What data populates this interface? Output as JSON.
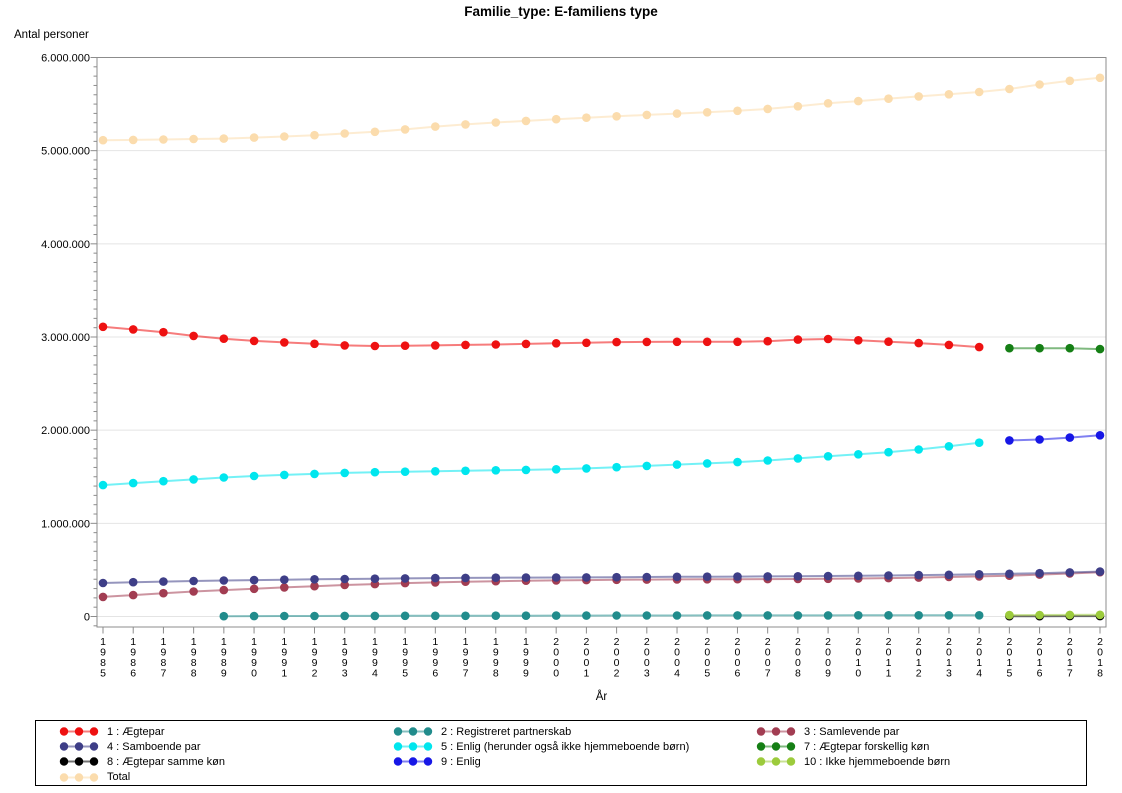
{
  "chart_data": {
    "type": "line",
    "title": "Familie_type: E-familiens type",
    "xlabel": "År",
    "ylabel": "Antal personer",
    "x": [
      "1985",
      "1986",
      "1987",
      "1988",
      "1989",
      "1990",
      "1991",
      "1992",
      "1993",
      "1994",
      "1995",
      "1996",
      "1997",
      "1998",
      "1999",
      "2000",
      "2001",
      "2002",
      "2003",
      "2004",
      "2005",
      "2006",
      "2007",
      "2008",
      "2009",
      "2010",
      "2011",
      "2012",
      "2013",
      "2014",
      "2015",
      "2016",
      "2017",
      "2018"
    ],
    "ylim": [
      -100000,
      6000000
    ],
    "ytick_values": [
      0,
      1000000,
      2000000,
      3000000,
      4000000,
      5000000,
      6000000
    ],
    "ytick_labels": [
      "0",
      "1.000.000",
      "2.000.000",
      "3.000.000",
      "4.000.000",
      "5.000.000",
      "6.000.000"
    ],
    "minor_tick_step": 100000,
    "grid": true,
    "legend_position": "bottom",
    "series": [
      {
        "id": "aegtepar-1",
        "name": "1 : Ægtepar",
        "color": "#ee1111",
        "start_year": 1985,
        "values": [
          3110000,
          3082000,
          3052000,
          3012000,
          2982000,
          2958000,
          2942000,
          2927000,
          2910000,
          2903000,
          2907000,
          2910000,
          2915000,
          2920000,
          2926000,
          2932000,
          2938000,
          2945000,
          2947000,
          2948000,
          2948000,
          2949000,
          2955000,
          2972000,
          2978000,
          2965000,
          2950000,
          2935000,
          2915000,
          2892000
        ]
      },
      {
        "id": "registreret-partnerskab-2",
        "name": "2 : Registreret partnerskab",
        "color": "#218c8c",
        "start_year": 1989,
        "values": [
          3000,
          4000,
          5000,
          5500,
          6000,
          6500,
          7000,
          7500,
          8000,
          8500,
          9000,
          9500,
          10000,
          10500,
          11000,
          11000,
          11500,
          11500,
          12000,
          12000,
          12000,
          12500,
          12500,
          13000,
          13000,
          13000
        ]
      },
      {
        "id": "samlevende-par-3",
        "name": "3 : Samlevende par",
        "color": "#a23d52",
        "start_year": 1985,
        "values": [
          210000,
          230000,
          250000,
          268000,
          283000,
          297000,
          312000,
          325000,
          338000,
          348000,
          358000,
          366000,
          373000,
          379000,
          384000,
          388000,
          391000,
          394000,
          396000,
          398000,
          399000,
          400000,
          401000,
          402000,
          405000,
          408000,
          412000,
          417000,
          424000,
          430000,
          438000,
          450000,
          462000,
          475000
        ]
      },
      {
        "id": "samboende-par-4",
        "name": "4 : Samboende par",
        "color": "#3e3e87",
        "start_year": 1985,
        "values": [
          360000,
          368000,
          375000,
          381000,
          386000,
          391000,
          395000,
          399000,
          403000,
          406000,
          409000,
          412000,
          414000,
          416000,
          418000,
          419000,
          420000,
          422000,
          424000,
          426000,
          427000,
          428000,
          430000,
          432000,
          435000,
          437000,
          440000,
          444000,
          448000,
          453000,
          458000,
          465000,
          473000,
          482000
        ]
      },
      {
        "id": "enlig-5",
        "name": "5 : Enlig (herunder også ikke hjemmeboende børn)",
        "color": "#00e6ee",
        "start_year": 1985,
        "values": [
          1410000,
          1432000,
          1452000,
          1472000,
          1492000,
          1508000,
          1520000,
          1531000,
          1541000,
          1549000,
          1554000,
          1559000,
          1564000,
          1569000,
          1574000,
          1580000,
          1590000,
          1602000,
          1616000,
          1630000,
          1643000,
          1657000,
          1674000,
          1697000,
          1719000,
          1741000,
          1764000,
          1792000,
          1827000,
          1866000
        ]
      },
      {
        "id": "aegtepar-forskellig-koen-7",
        "name": "7 : Ægtepar forskellig køn",
        "color": "#157f15",
        "start_year": 2015,
        "values": [
          2880000,
          2880000,
          2880000,
          2870000
        ]
      },
      {
        "id": "aegtepar-samme-koen-8",
        "name": "8 : Ægtepar samme køn",
        "color": "#000000",
        "start_year": 2015,
        "values": [
          3000,
          3500,
          4000,
          4500
        ]
      },
      {
        "id": "enlig-9",
        "name": "9 : Enlig",
        "color": "#1717e6",
        "start_year": 2015,
        "values": [
          1890000,
          1900000,
          1920000,
          1945000
        ]
      },
      {
        "id": "ikke-hjemmeboende-boern-10",
        "name": "10 : Ikke hjemmeboende børn",
        "color": "#9ccb3c",
        "start_year": 2015,
        "values": [
          15000,
          16000,
          17000,
          18000
        ]
      },
      {
        "id": "total",
        "name": "Total",
        "color": "#fbdcad",
        "start_year": 1985,
        "values": [
          5112000,
          5116000,
          5120000,
          5125000,
          5130000,
          5140000,
          5152000,
          5166000,
          5184000,
          5202000,
          5228000,
          5258000,
          5282000,
          5302000,
          5320000,
          5338000,
          5354000,
          5369000,
          5384000,
          5398000,
          5412000,
          5428000,
          5448000,
          5476000,
          5508000,
          5532000,
          5558000,
          5582000,
          5605000,
          5630000,
          5662000,
          5710000,
          5750000,
          5782000
        ]
      }
    ],
    "legend_columns": [
      [
        "aegtepar-1",
        "samboende-par-4",
        "aegtepar-samme-koen-8",
        "total"
      ],
      [
        "registreret-partnerskab-2",
        "enlig-5",
        "enlig-9"
      ],
      [
        "samlevende-par-3",
        "aegtepar-forskellig-koen-7",
        "ikke-hjemmeboende-boern-10"
      ]
    ]
  }
}
